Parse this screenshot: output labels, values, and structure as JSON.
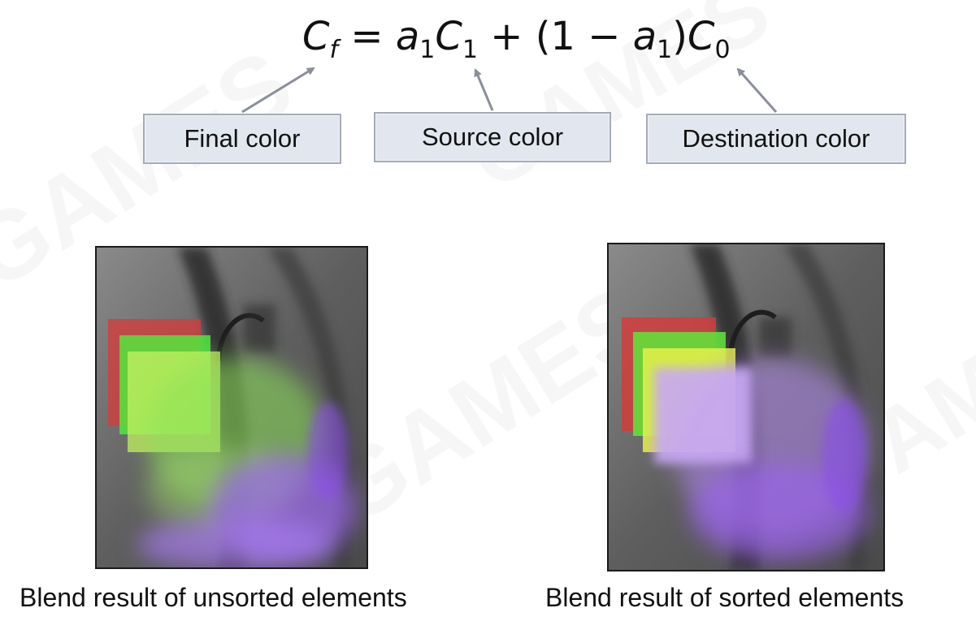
{
  "formula": {
    "lhs_symbol": "C",
    "lhs_sub": "f",
    "equals": "=",
    "term1_coef": "a",
    "term1_coef_sub": "1",
    "term1_color": "C",
    "term1_color_sub": "1",
    "plus": "+",
    "paren_open": "(1 −",
    "paren_coef": "a",
    "paren_coef_sub": "1",
    "paren_close": ")",
    "term2_color": "C",
    "term2_color_sub": "0"
  },
  "labels": {
    "final": "Final color",
    "source": "Source color",
    "destination": "Destination color"
  },
  "captions": {
    "unsorted": "Blend result of unsorted elements",
    "sorted": "Blend result of sorted elements"
  },
  "colors": {
    "label_fill": "#e2e6ee",
    "label_border": "#a4abb8",
    "arrow": "#8a8f99",
    "red": "#d83a3a",
    "green": "#6fe23c",
    "yellow": "#e6f04a",
    "purple": "#b48cf0"
  }
}
